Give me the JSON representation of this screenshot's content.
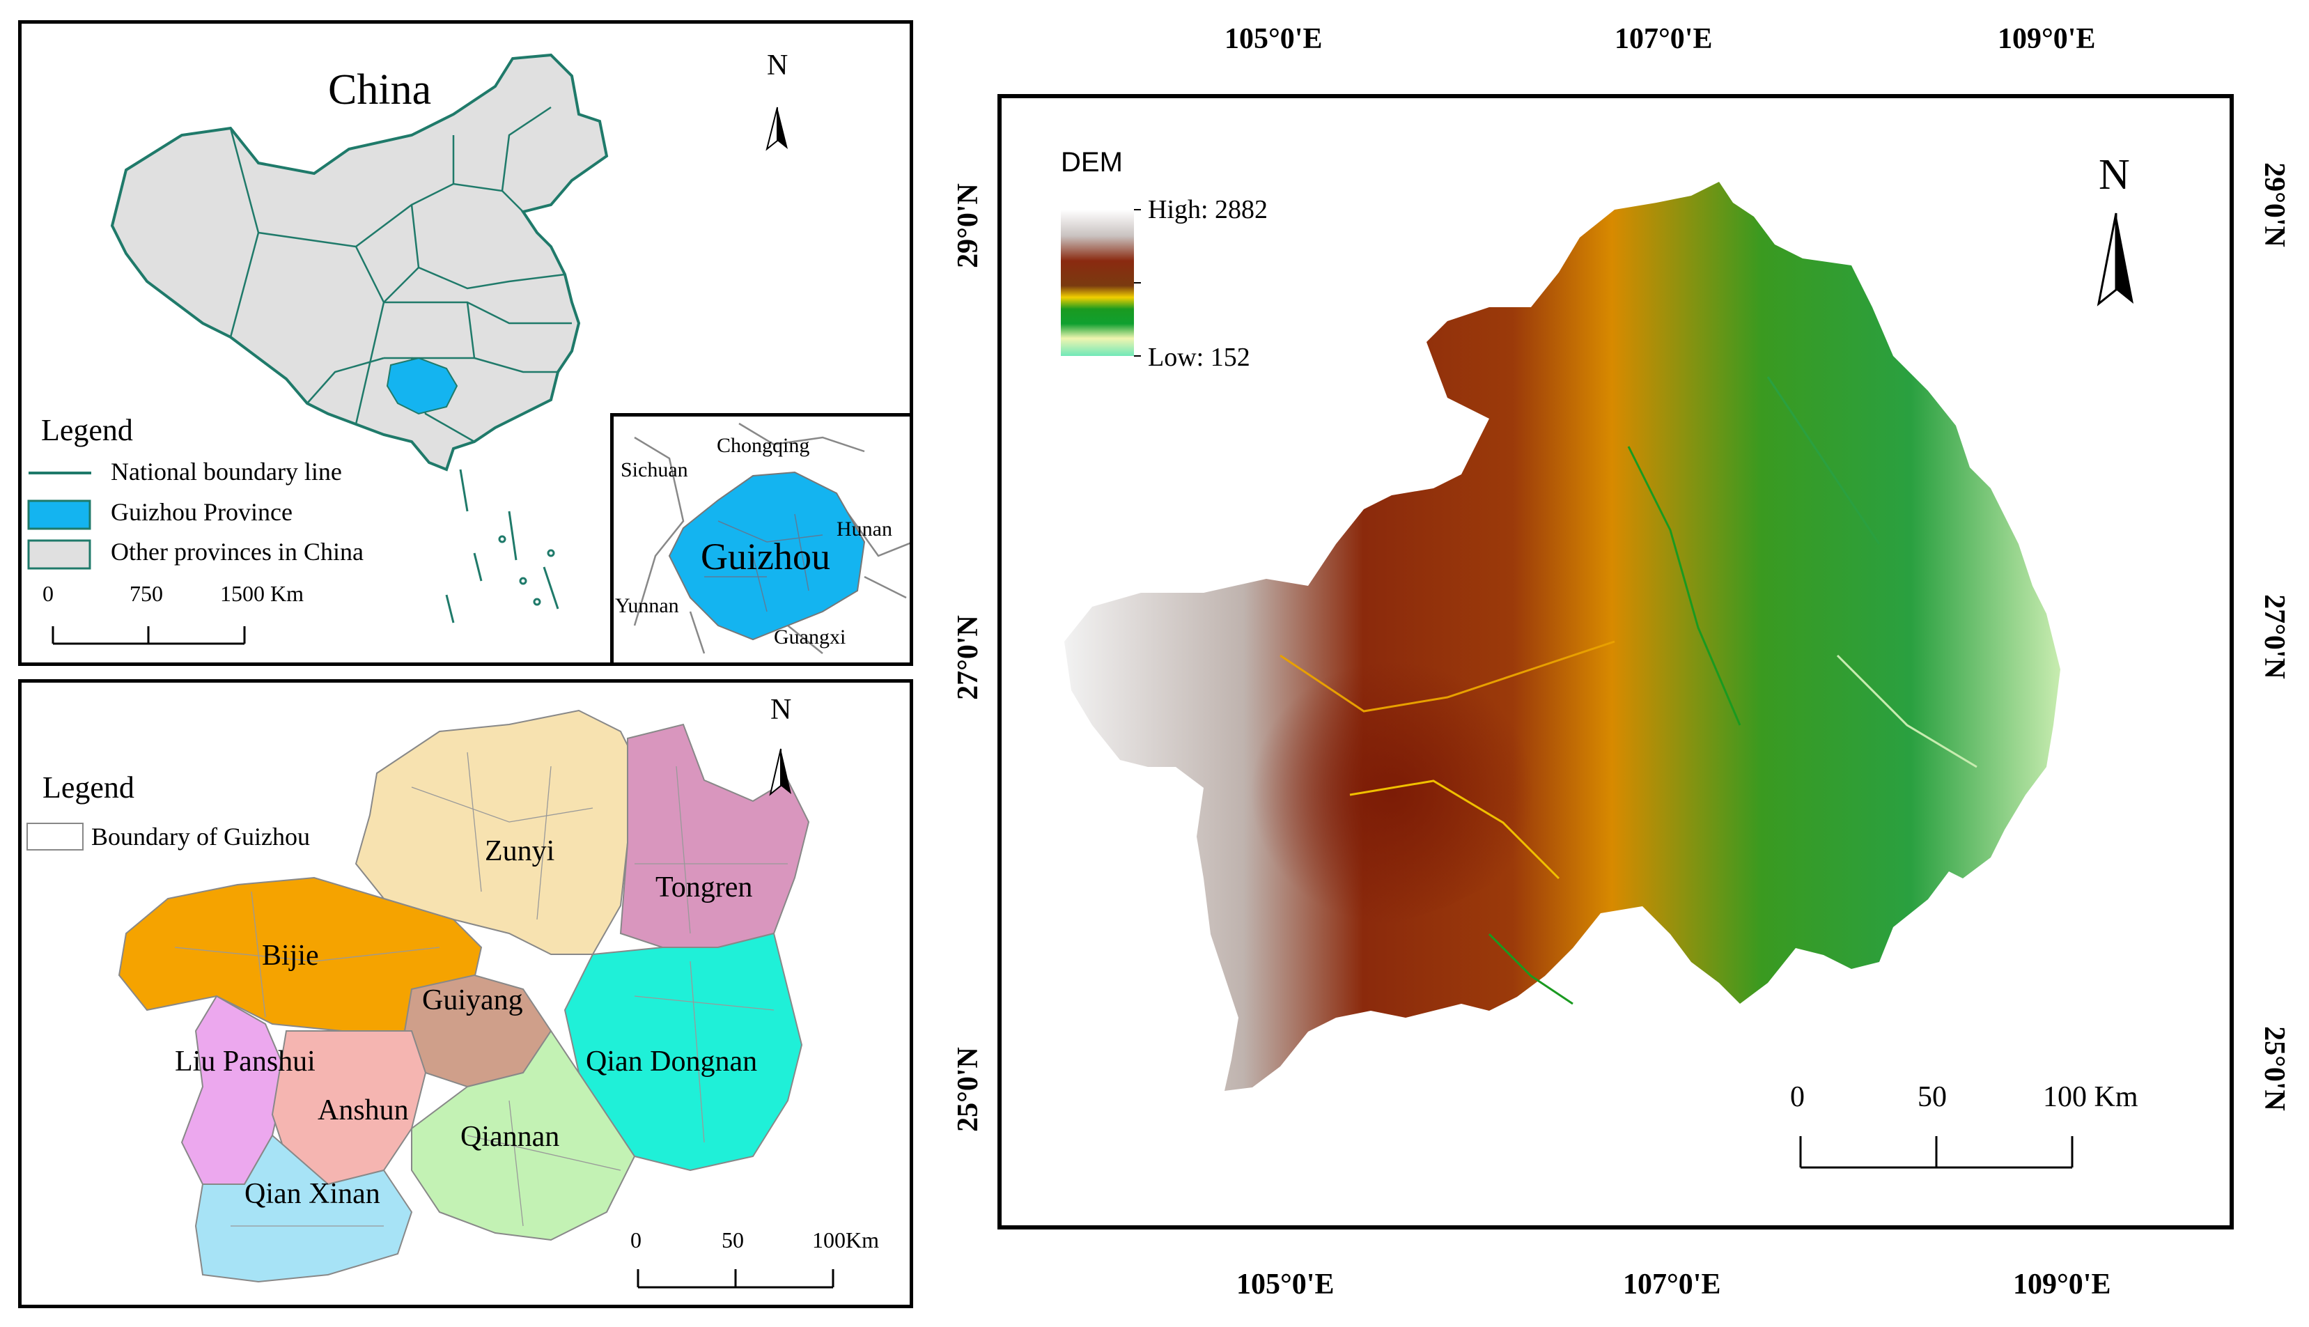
{
  "china_panel": {
    "title": "China",
    "north": "N",
    "legend_title": "Legend",
    "legend_items": [
      {
        "label": "National boundary line",
        "color": "#1f7a6a"
      },
      {
        "label": "Guizhou Province",
        "color": "#14b4f0"
      },
      {
        "label": "Other provinces in China",
        "color": "#e0e0e0"
      }
    ],
    "scale_labels": [
      "0",
      "750",
      "1500 Km"
    ]
  },
  "inset_panel": {
    "center_label": "Guizhou",
    "neighbors": [
      "Sichuan",
      "Chongqing",
      "Hunan",
      "Yunnan",
      "Guangxi"
    ],
    "guizhou_color": "#14b4f0"
  },
  "districts_panel": {
    "north": "N",
    "legend_title": "Legend",
    "legend_item": "Boundary of Guizhou",
    "districts": [
      {
        "name": "Zunyi",
        "color": "#f7e2b0"
      },
      {
        "name": "Tongren",
        "color": "#d996be"
      },
      {
        "name": "Bijie",
        "color": "#f5a300"
      },
      {
        "name": "Guiyang",
        "color": "#cf9f8a"
      },
      {
        "name": "Liu Panshui",
        "color": "#eca8ee"
      },
      {
        "name": "Anshun",
        "color": "#f5b5b1"
      },
      {
        "name": "Qiannan",
        "color": "#c3f2b4"
      },
      {
        "name": "Qian Dongnan",
        "color": "#1ff0d8"
      },
      {
        "name": "Qian Xinan",
        "color": "#a7e3f6"
      }
    ],
    "scale_labels": [
      "0",
      "50",
      "100Km"
    ]
  },
  "dem_panel": {
    "north": "N",
    "legend_title": "DEM",
    "high_label": "High: 2882",
    "low_label": "Low: 152",
    "top_ticks": [
      "105°0'E",
      "107°0'E",
      "109°0'E"
    ],
    "bottom_ticks": [
      "105°0'E",
      "107°0'E",
      "109°0'E"
    ],
    "left_ticks": [
      "29°0'N",
      "27°0'N",
      "25°0'N"
    ],
    "right_ticks": [
      "29°0'N",
      "27°0'N",
      "25°0'N"
    ],
    "scale_labels": [
      "0",
      "50",
      "100 Km"
    ]
  }
}
